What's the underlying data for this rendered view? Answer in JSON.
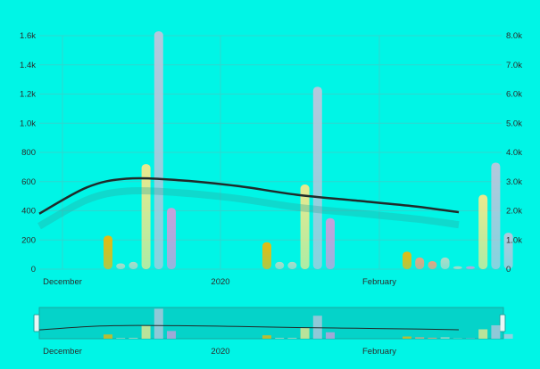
{
  "chart_data": {
    "type": "bar",
    "title": "",
    "x_tick_labels": [
      "December",
      "2020",
      "February"
    ],
    "y_left_ticks": [
      "0",
      "200",
      "400",
      "600",
      "800",
      "1.0k",
      "1.2k",
      "1.4k",
      "1.6k"
    ],
    "y_right_ticks": [
      "0",
      "1.0k",
      "2.0k",
      "3.0k",
      "4.0k",
      "5.0k",
      "6.0k",
      "7.0k",
      "8.0k"
    ],
    "ylim_left": [
      0,
      1600
    ],
    "ylim_right": [
      0,
      8000
    ],
    "groups": [
      {
        "position": "mid-December",
        "values": [
          230,
          40,
          50,
          720,
          1630,
          420
        ]
      },
      {
        "position": "mid-January",
        "values": [
          185,
          50,
          50,
          580,
          1250,
          350
        ]
      },
      {
        "position": "mid-February",
        "values": [
          120,
          80,
          55,
          80,
          20,
          20,
          510,
          730,
          250
        ]
      }
    ],
    "bar_colors": [
      "#f2b705",
      "#f6e889",
      "#b8d9c6",
      "#f4a07a",
      "#e1eeb6",
      "#d39bd9",
      "#bcc6dc",
      "#9be08f"
    ],
    "line": {
      "axis": "left",
      "x_days": [
        0,
        12,
        22,
        35,
        50,
        65,
        80,
        95,
        106
      ],
      "values": [
        380,
        560,
        620,
        610,
        570,
        510,
        470,
        430,
        390
      ]
    },
    "navigator": {
      "x_tick_labels": [
        "December",
        "2020",
        "February"
      ]
    }
  }
}
